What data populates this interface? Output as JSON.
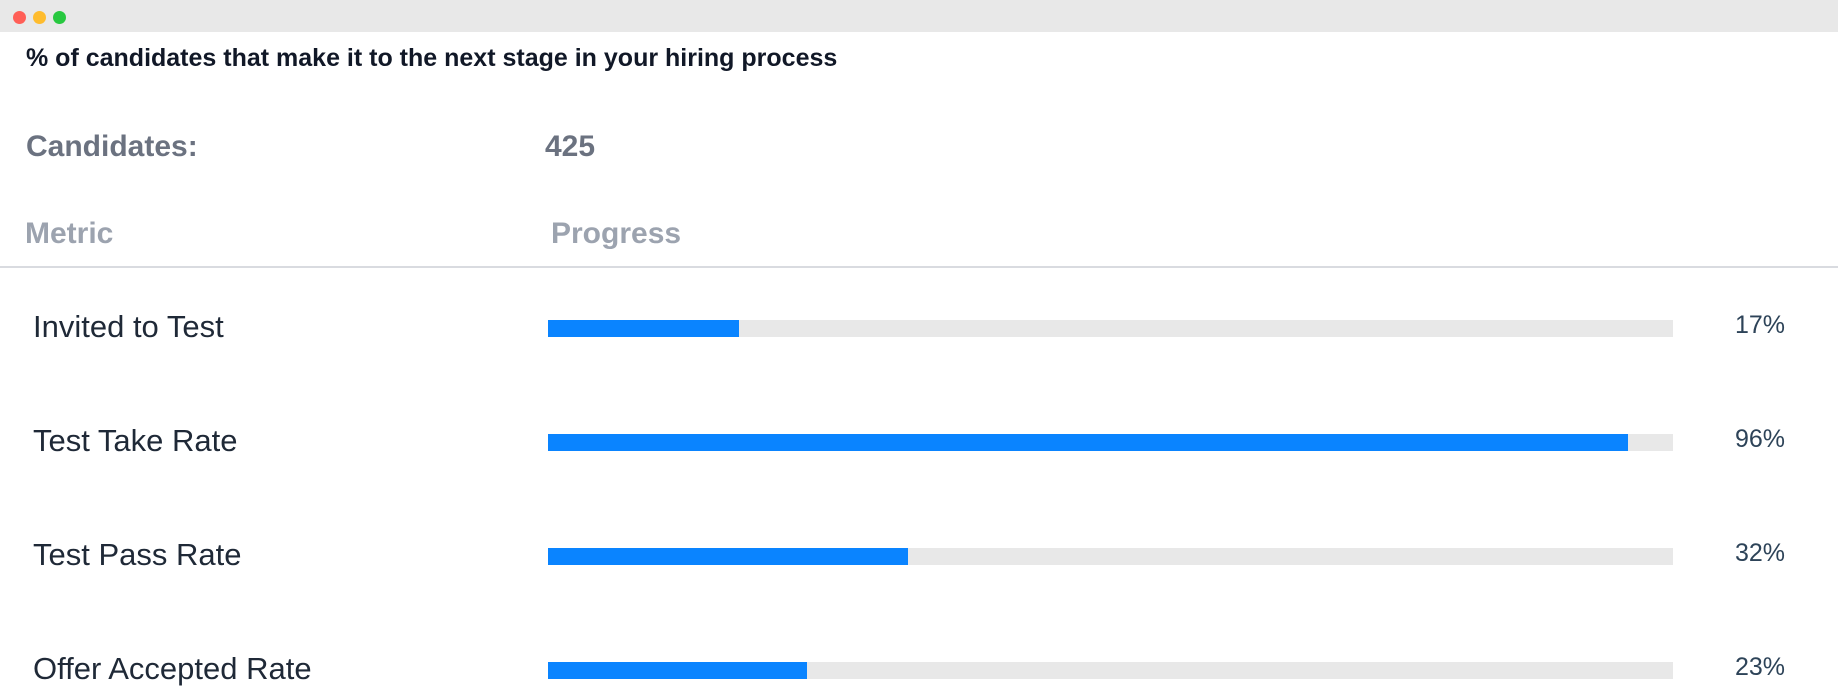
{
  "window": {
    "controls": [
      "close",
      "minimize",
      "maximize"
    ]
  },
  "page": {
    "title": "% of candidates that make it to the next stage in your hiring process"
  },
  "summary": {
    "label": "Candidates:",
    "value": "425"
  },
  "table": {
    "headers": {
      "metric": "Metric",
      "progress": "Progress"
    },
    "rows": [
      {
        "label": "Invited to Test",
        "percent": 17,
        "percent_label": "17%"
      },
      {
        "label": "Test Take Rate",
        "percent": 96,
        "percent_label": "96%"
      },
      {
        "label": "Test Pass Rate",
        "percent": 32,
        "percent_label": "32%"
      },
      {
        "label": "Offer Accepted Rate",
        "percent": 23,
        "percent_label": "23%"
      }
    ]
  },
  "colors": {
    "bar_fill": "#0a84ff",
    "bar_track": "#e8e8e8",
    "titlebar": "#e8e8e8",
    "close": "#ff5f57",
    "minimize": "#febc2e",
    "maximize": "#28c840"
  }
}
